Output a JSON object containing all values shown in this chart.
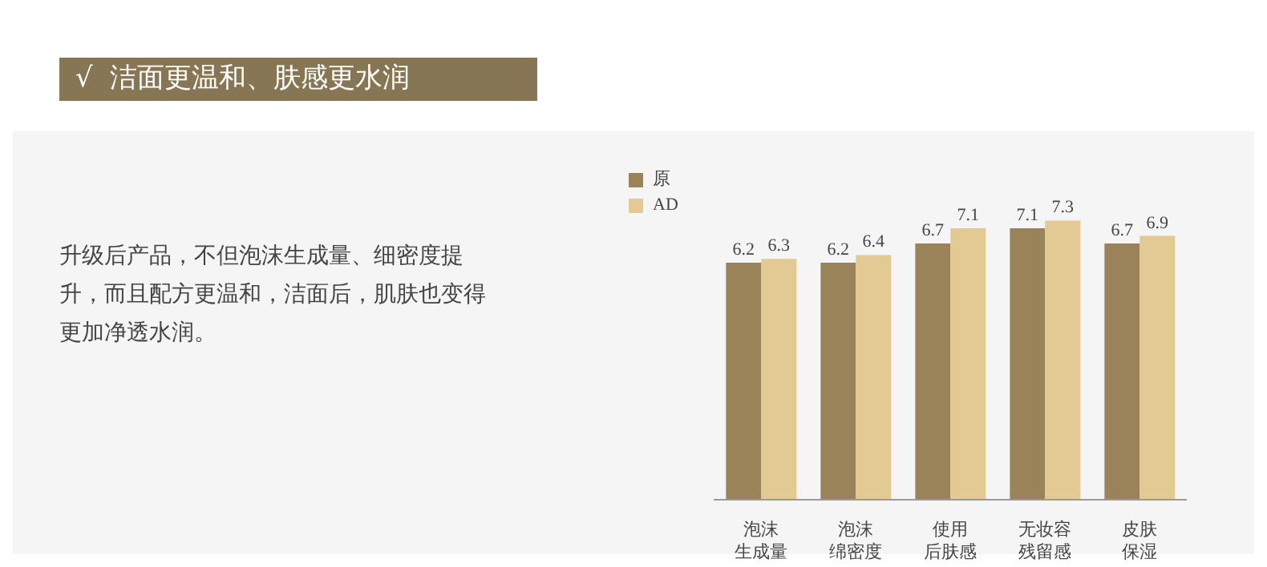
{
  "chart_data": {
    "type": "bar",
    "title": "√  洁面更温和、肤感更水润",
    "annotations": [
      "升级后产品，不但泡沫生成量、细密度提升，而且配方更温和，洁面后，肌肤也变得更加净透水润。"
    ],
    "categories": [
      "泡沫生成量",
      "泡沫绵密度",
      "使用后肤感",
      "无妆容残留感",
      "皮肤保湿"
    ],
    "series": [
      {
        "name": "原",
        "color": "#9a8259",
        "values": [
          6.2,
          6.2,
          6.7,
          7.1,
          6.7
        ]
      },
      {
        "name": "AD",
        "color": "#e3c992",
        "values": [
          6.3,
          6.4,
          7.1,
          7.3,
          6.9
        ]
      }
    ],
    "data_labels": true,
    "legend": "top left",
    "grid": false
  }
}
